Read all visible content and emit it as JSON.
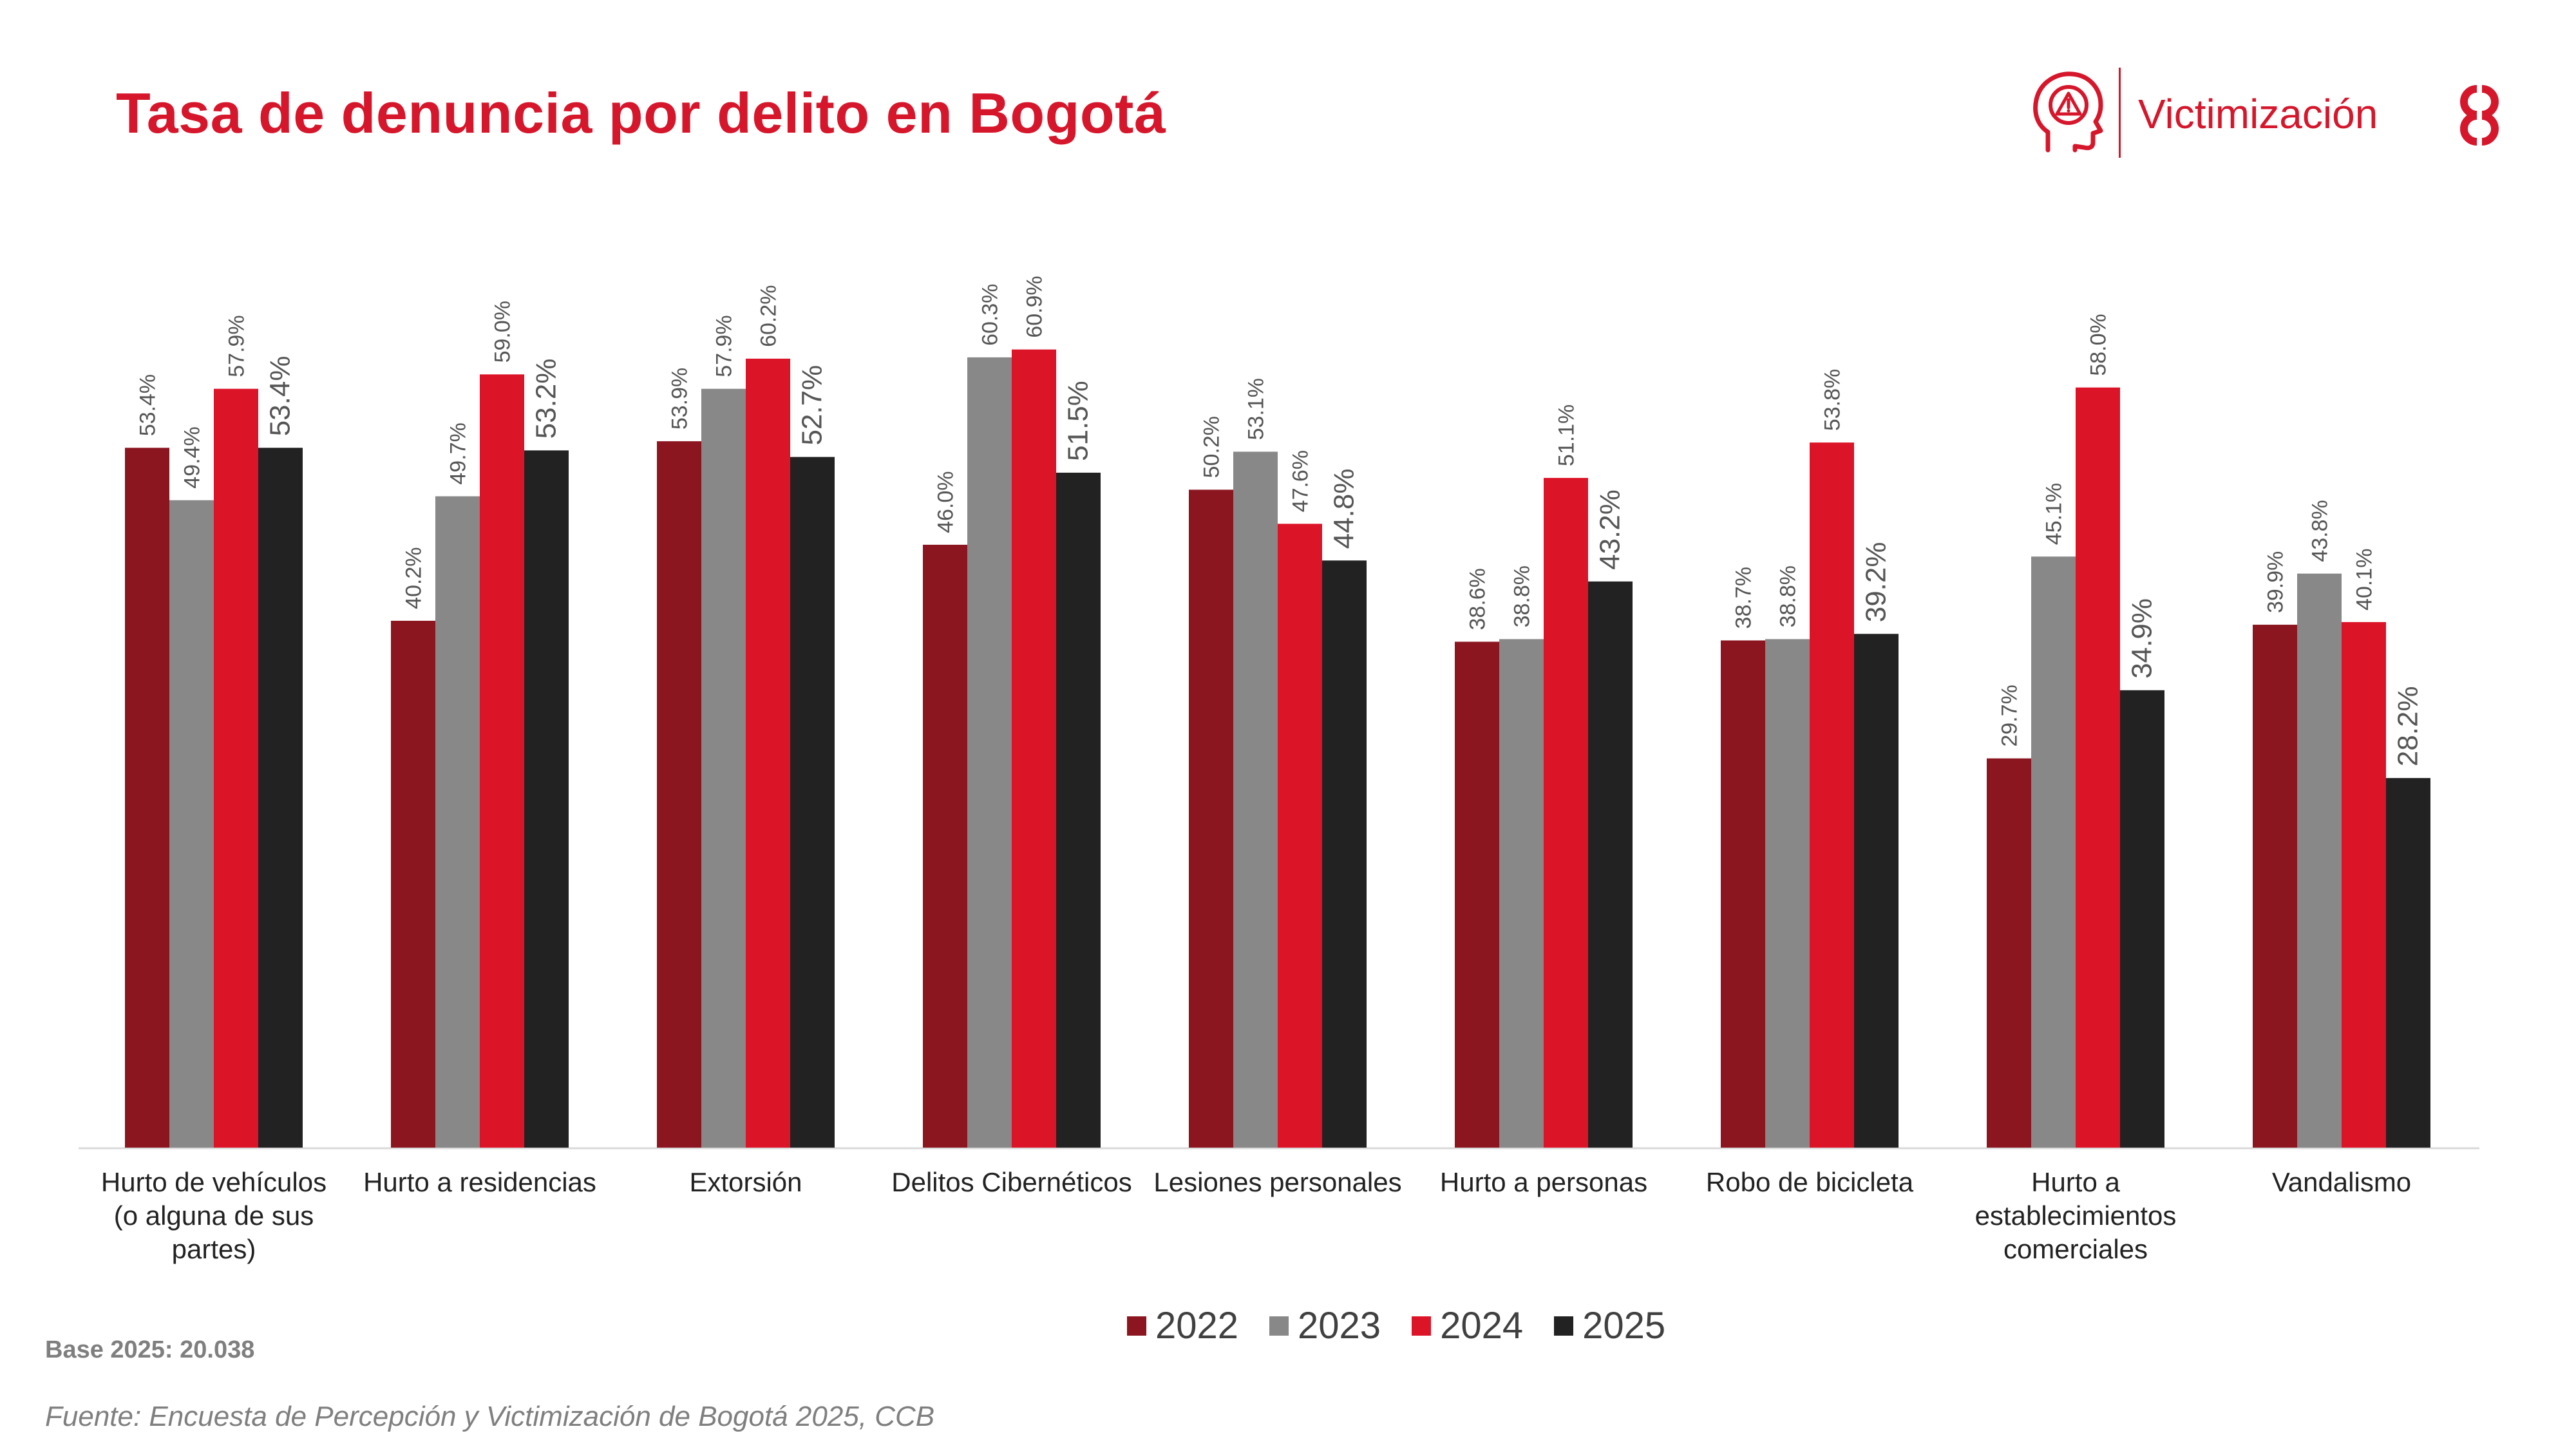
{
  "header": {
    "title": "Tasa de denuncia por delito en Bogotá",
    "section_label": "Victimización"
  },
  "colors": {
    "brand_red": "#d6162b",
    "series": [
      "#8b1620",
      "#888888",
      "#dc1428",
      "#222222"
    ]
  },
  "chart_data": {
    "type": "bar",
    "categories": [
      "Hurto de vehículos (o alguna de sus partes)",
      "Hurto a residencias",
      "Extorsión",
      "Delitos Cibernéticos",
      "Lesiones personales",
      "Hurto a personas",
      "Robo de bicicleta",
      "Hurto a establecimientos comerciales",
      "Vandalismo"
    ],
    "category_lines": [
      [
        "Hurto de vehículos",
        "(o alguna de sus",
        "partes)"
      ],
      [
        "Hurto a residencias"
      ],
      [
        "Extorsión"
      ],
      [
        "Delitos Cibernéticos"
      ],
      [
        "Lesiones personales"
      ],
      [
        "Hurto a personas"
      ],
      [
        "Robo de bicicleta"
      ],
      [
        "Hurto a",
        "establecimientos",
        "comerciales"
      ],
      [
        "Vandalismo"
      ]
    ],
    "series": [
      {
        "name": "2022",
        "values": [
          53.4,
          40.2,
          53.9,
          46.0,
          50.2,
          38.6,
          38.7,
          29.7,
          39.9
        ],
        "labels": [
          "53.4%",
          "40.2%",
          "53.9%",
          "46.0%",
          "50.2%",
          "38.6%",
          "38.7%",
          "29.7%",
          "39.9%"
        ]
      },
      {
        "name": "2023",
        "values": [
          49.4,
          49.7,
          57.9,
          60.3,
          53.1,
          38.8,
          38.8,
          45.1,
          43.8
        ],
        "labels": [
          "49.4%",
          "49.7%",
          "57.9%",
          "60.3%",
          "53.1%",
          "38.8%",
          "38.8%",
          "45.1%",
          "43.8%"
        ]
      },
      {
        "name": "2024",
        "values": [
          57.9,
          59.0,
          60.2,
          60.9,
          47.6,
          51.1,
          53.8,
          58.0,
          40.1
        ],
        "labels": [
          "57.9%",
          "59.0%",
          "60.2%",
          "60.9%",
          "47.6%",
          "51.1%",
          "53.8%",
          "58.0%",
          "40.1%"
        ]
      },
      {
        "name": "2025",
        "values": [
          53.4,
          53.2,
          52.7,
          51.5,
          44.8,
          43.2,
          39.2,
          34.9,
          28.2
        ],
        "labels": [
          "53.4%",
          "53.2%",
          "52.7%",
          "51.5%",
          "44.8%",
          "43.2%",
          "39.2%",
          "34.9%",
          "28.2%"
        ]
      }
    ],
    "ylim": [
      0,
      70
    ],
    "xlabel": "",
    "ylabel": "",
    "grid": false,
    "legend_position": "bottom-center"
  },
  "footer": {
    "base": "Base 2025:  20.038",
    "source": "Fuente: Encuesta de Percepción y Victimización de Bogotá 2025, CCB"
  }
}
